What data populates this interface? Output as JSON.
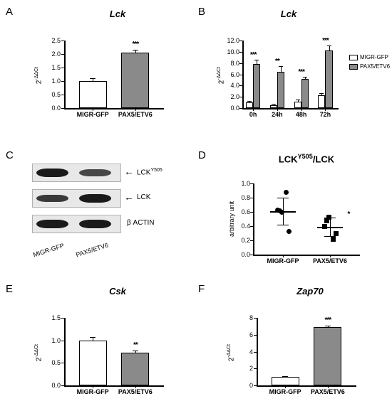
{
  "panelA": {
    "label": "A",
    "title": "Lck",
    "ylabel": "2^-ΔΔCt",
    "ylim": [
      0,
      2.5
    ],
    "ytick_step": 0.5,
    "categories": [
      "MIGR-GFP",
      "PAX5/ETV6"
    ],
    "values": [
      1.0,
      2.05
    ],
    "errors": [
      0.1,
      0.12
    ],
    "colors": [
      "#ffffff",
      "#8a8a8a"
    ],
    "sig": [
      "",
      "***"
    ]
  },
  "panelB": {
    "label": "B",
    "title": "Lck",
    "ylabel": "2^-ΔΔCt",
    "ylim": [
      0,
      12
    ],
    "ytick_step": 2.0,
    "categories": [
      "0h",
      "24h",
      "48h",
      "72h"
    ],
    "series": [
      {
        "name": "MIGR-GFP",
        "color": "#ffffff",
        "values": [
          1.0,
          0.5,
          1.2,
          2.3
        ],
        "errors": [
          0.3,
          0.2,
          0.3,
          0.4
        ]
      },
      {
        "name": "PAX5/ETV6",
        "color": "#8a8a8a",
        "values": [
          7.8,
          6.5,
          5.2,
          10.2
        ],
        "errors": [
          0.8,
          1.0,
          0.3,
          0.9
        ]
      }
    ],
    "sig": [
      "***",
      "**",
      "***",
      "***"
    ],
    "legend": [
      "MIGR-GFP",
      "PAX5/ETV6"
    ]
  },
  "panelC": {
    "label": "C",
    "lanes": [
      "MIGR-GFP",
      "PAX5/ETV6"
    ],
    "bands": [
      {
        "label": "LCKY505",
        "sup": "Y505",
        "intensities": [
          1.0,
          0.55
        ]
      },
      {
        "label": "LCK",
        "intensities": [
          0.7,
          1.0
        ]
      },
      {
        "label": "β ACTIN",
        "intensities": [
          1.0,
          1.0
        ]
      }
    ]
  },
  "panelD": {
    "label": "D",
    "title": "LCKY505/LCK",
    "title_sup": "Y505",
    "ylabel": "arbitrary unit",
    "ylim": [
      0.0,
      1.0
    ],
    "ytick_step": 0.2,
    "categories": [
      "MIGR-GFP",
      "PAX5/ETV6"
    ],
    "points": [
      {
        "x": 0,
        "y": 0.63,
        "shape": "circle"
      },
      {
        "x": 0,
        "y": 0.6,
        "shape": "circle"
      },
      {
        "x": 0,
        "y": 0.88,
        "shape": "circle"
      },
      {
        "x": 0,
        "y": 0.33,
        "shape": "circle"
      },
      {
        "x": 0,
        "y": 0.62,
        "shape": "circle"
      },
      {
        "x": 1,
        "y": 0.4,
        "shape": "square"
      },
      {
        "x": 1,
        "y": 0.53,
        "shape": "square"
      },
      {
        "x": 1,
        "y": 0.22,
        "shape": "square"
      },
      {
        "x": 1,
        "y": 0.3,
        "shape": "square"
      },
      {
        "x": 1,
        "y": 0.48,
        "shape": "square"
      }
    ],
    "means": [
      0.61,
      0.39
    ],
    "sds": [
      0.19,
      0.13
    ],
    "sig": [
      "",
      "*"
    ]
  },
  "panelE": {
    "label": "E",
    "title": "Csk",
    "ylabel": "2^-ΔΔCt",
    "ylim": [
      0,
      1.5
    ],
    "ytick_step": 0.5,
    "categories": [
      "MIGR-GFP",
      "PAX5/ETV6"
    ],
    "values": [
      1.0,
      0.73
    ],
    "errors": [
      0.08,
      0.05
    ],
    "colors": [
      "#ffffff",
      "#8a8a8a"
    ],
    "sig": [
      "",
      "**"
    ]
  },
  "panelF": {
    "label": "F",
    "title": "Zap70",
    "ylabel": "2^-ΔΔCt",
    "ylim": [
      0,
      8
    ],
    "ytick_step": 2,
    "categories": [
      "MIGR-GFP",
      "PAX5/ETV6"
    ],
    "values": [
      1.0,
      6.9
    ],
    "errors": [
      0.1,
      0.2
    ],
    "colors": [
      "#ffffff",
      "#8a8a8a"
    ],
    "sig": [
      "",
      "***"
    ]
  }
}
